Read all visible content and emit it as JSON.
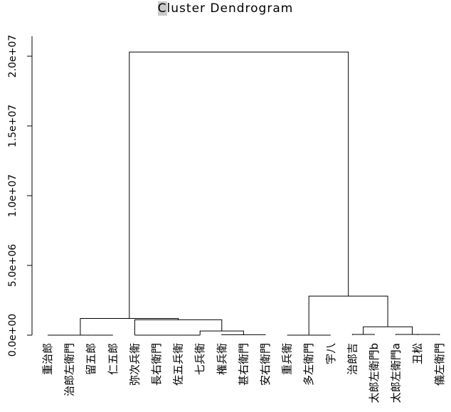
{
  "chart_data": {
    "type": "dendrogram",
    "title": "Cluster Dendrogram",
    "title_highlight_chars": 1,
    "xlabel": "",
    "ylabel": "",
    "ylim": [
      0,
      21000000
    ],
    "yticks": [
      0,
      5000000,
      10000000,
      15000000,
      20000000
    ],
    "ytick_labels": [
      "0.0e+00",
      "5.0e+06",
      "1.0e+07",
      "1.5e+07",
      "2.0e+07"
    ],
    "leaves": [
      "重治郎",
      "治郎左衛門",
      "留五郎",
      "仁五郎",
      "弥次兵衛",
      "長右衛門",
      "佐五兵衛",
      "七兵衛",
      "権兵衛",
      "甚右衛門",
      "安右衛門",
      "重兵衛",
      "多左衛門",
      "宇八",
      "治郎吉",
      "太郎左衛門b",
      "太郎左衛門a",
      "丑松",
      "儀左衛門"
    ],
    "merges": [
      {
        "left": 1,
        "right": 2,
        "height": 0
      },
      {
        "left": 2,
        "right": 3,
        "height": 0
      },
      {
        "left": 3,
        "right": 4,
        "height": 0
      },
      {
        "left": 5,
        "right": 6,
        "height": 0
      },
      {
        "left": 6,
        "right": 7,
        "height": 0
      },
      {
        "left": 7,
        "right": 8,
        "height": 0
      },
      {
        "left": 9,
        "right": 10,
        "height": 30000
      },
      {
        "left": 10,
        "right": 11,
        "height": 30000
      },
      {
        "left": 8,
        "right": 10,
        "height": 300000
      },
      {
        "left": 5,
        "right": 9,
        "height": 1100000
      },
      {
        "left": 2.5,
        "right": 7,
        "height": 1200000
      },
      {
        "left": 12,
        "right": 13,
        "height": 0
      },
      {
        "left": 13,
        "right": 14,
        "height": 0
      },
      {
        "left": 15,
        "right": 16,
        "height": 50000
      },
      {
        "left": 18,
        "right": 19,
        "height": 50000
      },
      {
        "left": 17,
        "right": 18.5,
        "height": 50000
      },
      {
        "left": 15.5,
        "right": 17.75,
        "height": 600000
      },
      {
        "left": 13,
        "right": 16.625,
        "height": 2800000
      },
      {
        "left": 4.75,
        "right": 14.8125,
        "height": 20300000
      }
    ]
  }
}
